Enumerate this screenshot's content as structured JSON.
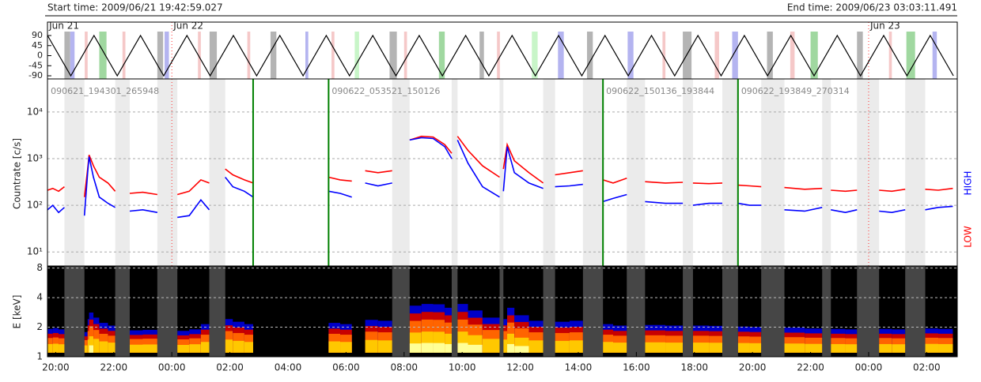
{
  "header": {
    "start": "Start time: 2009/06/21 19:42:59.027",
    "end": "End time: 2009/06/23 03:03:11.491"
  },
  "chart_data": [
    {
      "type": "line",
      "xlim": [
        19.7164,
        51.0531
      ],
      "ylim": [
        -104,
        150
      ],
      "yticks": [
        90,
        45,
        0,
        -45,
        -90
      ],
      "color": "#000000",
      "x": [
        19.72,
        20.52,
        21.32,
        22.12,
        22.92,
        23.72,
        24.52,
        25.32,
        26.12,
        26.92,
        27.72,
        28.52,
        29.32,
        30.12,
        30.92,
        31.72,
        32.52,
        33.32,
        34.12,
        34.92,
        35.72,
        36.52,
        37.32,
        38.12,
        38.92,
        39.72,
        40.52,
        41.32,
        42.12,
        42.92,
        43.72,
        44.52,
        45.32,
        46.12,
        46.92,
        47.72,
        48.52,
        49.32,
        50.12,
        50.92
      ],
      "values": [
        90,
        -90,
        90,
        -90,
        90,
        -90,
        90,
        -90,
        90,
        -90,
        90,
        -90,
        90,
        -90,
        90,
        -90,
        90,
        -90,
        90,
        -90,
        90,
        -90,
        90,
        -90,
        90,
        -90,
        90,
        -90,
        90,
        -90,
        90,
        -90,
        90,
        -90,
        90,
        -90,
        90,
        -90,
        90,
        -90
      ],
      "days": [
        {
          "x": 19.72,
          "label": "Jun 21"
        },
        {
          "x": 24,
          "label": "Jun 22"
        },
        {
          "x": 48,
          "label": "Jun 23"
        }
      ],
      "bands": [
        {
          "x": [
            20.3,
            20.5
          ],
          "color": "#b4b4b4"
        },
        {
          "x": [
            20.5,
            20.65
          ],
          "color": "#b4b4f0"
        },
        {
          "x": [
            21.0,
            21.1
          ],
          "color": "#f5c8c8"
        },
        {
          "x": [
            21.5,
            21.75
          ],
          "color": "#a0d8a0"
        },
        {
          "x": [
            22.3,
            22.4
          ],
          "color": "#f5c8c8"
        },
        {
          "x": [
            23.5,
            23.7
          ],
          "color": "#b4b4b4"
        },
        {
          "x": [
            23.75,
            23.9
          ],
          "color": "#b4b4f0"
        },
        {
          "x": [
            24.9,
            25.0
          ],
          "color": "#f5c8c8"
        },
        {
          "x": [
            25.3,
            25.55
          ],
          "color": "#b4b4b4"
        },
        {
          "x": [
            26.6,
            26.7
          ],
          "color": "#f5c8c8"
        },
        {
          "x": [
            27.4,
            27.6
          ],
          "color": "#b4b4b4"
        },
        {
          "x": [
            28.6,
            28.7
          ],
          "color": "#b4b4f0"
        },
        {
          "x": [
            29.5,
            29.6
          ],
          "color": "#f5c8c8"
        },
        {
          "x": [
            30.3,
            30.45
          ],
          "color": "#c8f5c8"
        },
        {
          "x": [
            31.5,
            31.75
          ],
          "color": "#b4b4b4"
        },
        {
          "x": [
            32.0,
            32.1
          ],
          "color": "#f5c8c8"
        },
        {
          "x": [
            33.2,
            33.4
          ],
          "color": "#a0d8a0"
        },
        {
          "x": [
            34.6,
            34.75
          ],
          "color": "#b4b4b4"
        },
        {
          "x": [
            35.2,
            35.3
          ],
          "color": "#f5c8c8"
        },
        {
          "x": [
            36.4,
            36.6
          ],
          "color": "#c8f5c8"
        },
        {
          "x": [
            37.3,
            37.5
          ],
          "color": "#b4b4f0"
        },
        {
          "x": [
            38.3,
            38.5
          ],
          "color": "#b4b4b4"
        },
        {
          "x": [
            39.7,
            39.9
          ],
          "color": "#b4b4f0"
        },
        {
          "x": [
            40.9,
            41.0
          ],
          "color": "#f5c8c8"
        },
        {
          "x": [
            41.6,
            41.9
          ],
          "color": "#b4b4b4"
        },
        {
          "x": [
            42.7,
            42.85
          ],
          "color": "#f5c8c8"
        },
        {
          "x": [
            43.3,
            43.5
          ],
          "color": "#b4b4f0"
        },
        {
          "x": [
            44.5,
            44.7
          ],
          "color": "#b4b4b4"
        },
        {
          "x": [
            45.3,
            45.45
          ],
          "color": "#f5c8c8"
        },
        {
          "x": [
            46.0,
            46.25
          ],
          "color": "#a0d8a0"
        },
        {
          "x": [
            47.6,
            47.8
          ],
          "color": "#b4b4b4"
        },
        {
          "x": [
            48.7,
            48.8
          ],
          "color": "#f5c8c8"
        },
        {
          "x": [
            49.3,
            49.6
          ],
          "color": "#a0d8a0"
        },
        {
          "x": [
            50.2,
            50.35
          ],
          "color": "#b4b4f0"
        }
      ]
    },
    {
      "type": "line",
      "log_scale": true,
      "ylabel": "Countrate [c/s]",
      "xlim": [
        19.7164,
        51.0531
      ],
      "ylim": [
        5,
        51000
      ],
      "yticks": [
        {
          "value": 10,
          "label": "10¹"
        },
        {
          "value": 100,
          "label": "10²"
        },
        {
          "value": 1000,
          "label": "10³"
        },
        {
          "value": 10000,
          "label": "10⁴"
        }
      ],
      "grid": true,
      "x": [
        19.72,
        19.9,
        20.1,
        20.3,
        null,
        20.99,
        21.1,
        21.15,
        21.3,
        21.5,
        21.8,
        22.05,
        null,
        22.55,
        23.0,
        23.5,
        null,
        24.19,
        24.6,
        25.0,
        25.29,
        null,
        25.84,
        26.1,
        26.5,
        26.8,
        null,
        29.4,
        29.8,
        30.2,
        null,
        30.66,
        31.1,
        31.59,
        null,
        32.19,
        32.6,
        33.0,
        33.4,
        33.64,
        null,
        33.84,
        34.2,
        34.7,
        35.29,
        null,
        35.42,
        35.55,
        35.8,
        36.3,
        36.79,
        null,
        37.2,
        37.7,
        38.16,
        null,
        38.85,
        39.2,
        39.67,
        null,
        40.3,
        41.0,
        41.6,
        null,
        41.95,
        42.5,
        42.96,
        null,
        43.5,
        43.9,
        44.3,
        null,
        45.1,
        45.8,
        46.4,
        null,
        46.7,
        47.2,
        47.6,
        null,
        48.36,
        48.8,
        49.26,
        null,
        49.95,
        50.4,
        50.9
      ],
      "series": [
        {
          "name": "LOW",
          "color": "#ff0000",
          "values": [
            210,
            230,
            200,
            250,
            null,
            150,
            600,
            1200,
            700,
            400,
            300,
            200,
            null,
            180,
            190,
            170,
            null,
            170,
            200,
            350,
            300,
            null,
            600,
            450,
            350,
            300,
            null,
            400,
            350,
            330,
            null,
            550,
            500,
            550,
            null,
            2500,
            3000,
            2900,
            2000,
            1300,
            null,
            3000,
            1500,
            700,
            400,
            null,
            600,
            2000,
            900,
            500,
            300,
            null,
            450,
            500,
            550,
            null,
            350,
            300,
            380,
            null,
            320,
            300,
            310,
            null,
            300,
            290,
            300,
            null,
            270,
            260,
            250,
            null,
            240,
            220,
            230,
            null,
            210,
            200,
            210,
            null,
            210,
            200,
            220,
            null,
            220,
            210,
            230
          ]
        },
        {
          "name": "HIGH",
          "color": "#0000ff",
          "values": [
            80,
            100,
            70,
            90,
            null,
            60,
            500,
            1100,
            400,
            150,
            110,
            90,
            null,
            75,
            80,
            70,
            null,
            55,
            60,
            130,
            80,
            null,
            400,
            250,
            200,
            150,
            null,
            200,
            180,
            150,
            null,
            300,
            260,
            300,
            null,
            2500,
            2800,
            2700,
            1800,
            1000,
            null,
            2500,
            800,
            250,
            150,
            null,
            200,
            1800,
            500,
            300,
            230,
            null,
            250,
            260,
            280,
            null,
            120,
            140,
            170,
            null,
            120,
            110,
            110,
            null,
            100,
            110,
            110,
            null,
            110,
            100,
            100,
            null,
            80,
            75,
            90,
            null,
            80,
            70,
            80,
            null,
            75,
            70,
            80,
            null,
            80,
            90,
            95
          ]
        }
      ],
      "boundaries": [
        26.8,
        29.4,
        38.85,
        43.5
      ],
      "segments": [
        {
          "x": 19.72,
          "label": "090621_194301_265948"
        },
        {
          "x": 29.4,
          "label": "090622_053521_150126"
        },
        {
          "x": 38.85,
          "label": "090622_150136_193844"
        },
        {
          "x": 43.5,
          "label": "090622_193849_270314"
        }
      ],
      "days": [
        24,
        48
      ],
      "shaded": [
        [
          20.3,
          20.99
        ],
        [
          22.05,
          22.55
        ],
        [
          23.5,
          24.19
        ],
        [
          25.29,
          25.84
        ],
        [
          31.59,
          32.19
        ],
        [
          33.64,
          33.84
        ],
        [
          35.29,
          35.42
        ],
        [
          36.79,
          37.2
        ],
        [
          38.16,
          38.85
        ],
        [
          39.67,
          40.3
        ],
        [
          41.6,
          41.95
        ],
        [
          42.96,
          43.5
        ],
        [
          44.3,
          45.1
        ],
        [
          46.4,
          46.7
        ],
        [
          47.6,
          48.36
        ],
        [
          49.26,
          49.95
        ]
      ]
    },
    {
      "type": "spectrogram",
      "log_scale": true,
      "ylabel": "E [keV]",
      "xlim": [
        19.7164,
        51.0531
      ],
      "ylim": [
        1,
        8.4
      ],
      "yticks": [
        1,
        2,
        4,
        8
      ],
      "grid": true,
      "xticks": [
        {
          "value": 20,
          "label": "20:00"
        },
        {
          "value": 22,
          "label": "22:00"
        },
        {
          "value": 24,
          "label": "00:00"
        },
        {
          "value": 26,
          "label": "02:00"
        },
        {
          "value": 28,
          "label": "04:00"
        },
        {
          "value": 30,
          "label": "06:00"
        },
        {
          "value": 32,
          "label": "08:00"
        },
        {
          "value": 34,
          "label": "10:00"
        },
        {
          "value": 36,
          "label": "12:00"
        },
        {
          "value": 38,
          "label": "14:00"
        },
        {
          "value": 40,
          "label": "16:00"
        },
        {
          "value": 42,
          "label": "18:00"
        },
        {
          "value": 44,
          "label": "20:00"
        },
        {
          "value": 46,
          "label": "22:00"
        },
        {
          "value": 48,
          "label": "00:00"
        },
        {
          "value": 50,
          "label": "02:00"
        }
      ]
    }
  ]
}
